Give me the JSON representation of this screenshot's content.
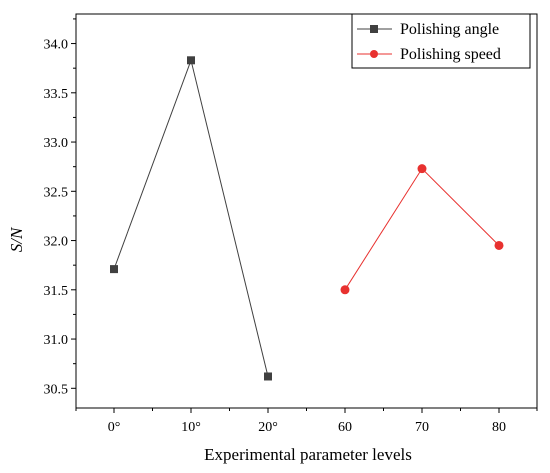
{
  "chart_data": {
    "type": "line",
    "xlabel": "Experimental parameter levels",
    "ylabel": "S/N",
    "ylim": [
      30.3,
      34.3
    ],
    "yticks": [
      "30.5",
      "31.0",
      "31.5",
      "32.0",
      "32.5",
      "33.0",
      "33.5",
      "34.0"
    ],
    "categories": [
      "0°",
      "10°",
      "20°",
      "60",
      "70",
      "80"
    ],
    "legend_position": "top-right",
    "grid": false,
    "series": [
      {
        "name": "Polishing angle",
        "color": "#404040",
        "marker": "square",
        "x": [
          "0°",
          "10°",
          "20°"
        ],
        "values": [
          31.71,
          33.83,
          30.62
        ]
      },
      {
        "name": "Polishing speed",
        "color": "#e8312f",
        "marker": "circle",
        "x": [
          "60",
          "70",
          "80"
        ],
        "values": [
          31.5,
          32.73,
          31.95
        ]
      }
    ]
  }
}
